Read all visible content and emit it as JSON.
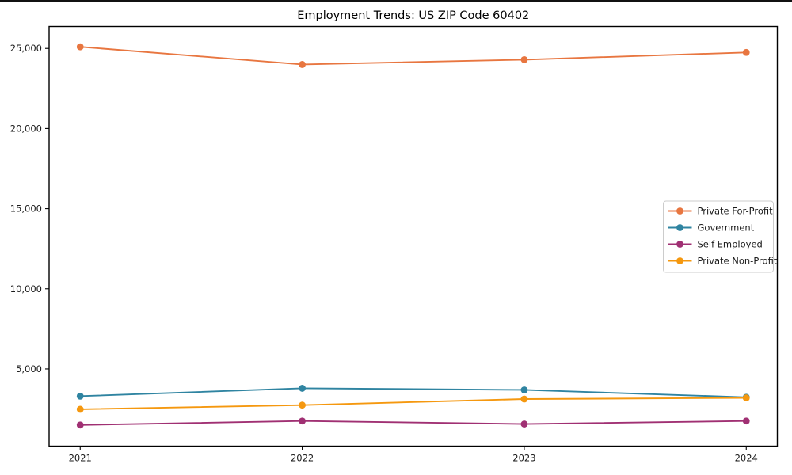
{
  "chart_data": {
    "type": "line",
    "title": "Employment Trends: US ZIP Code 60402",
    "xlabel": "",
    "ylabel": "",
    "x": [
      2021,
      2022,
      2023,
      2024
    ],
    "x_tick_labels": [
      "2021",
      "2022",
      "2023",
      "2024"
    ],
    "series": [
      {
        "name": "Private For-Profit",
        "color": "#e87640",
        "values": [
          25100,
          24000,
          24300,
          24750
        ]
      },
      {
        "name": "Government",
        "color": "#2f84a1",
        "values": [
          3300,
          3790,
          3690,
          3230
        ]
      },
      {
        "name": "Self-Employed",
        "color": "#a03073",
        "values": [
          1500,
          1750,
          1560,
          1750
        ]
      },
      {
        "name": "Private Non-Profit",
        "color": "#f5980f",
        "values": [
          2480,
          2740,
          3120,
          3190
        ]
      }
    ],
    "xlim": [
      2020.86,
      2024.14
    ],
    "ylim": [
      180,
      26370
    ],
    "yticks": [
      5000,
      10000,
      15000,
      20000,
      25000
    ],
    "ytick_labels": [
      "5,000",
      "10,000",
      "15,000",
      "20,000",
      "25,000"
    ],
    "grid": false,
    "marker": "circle",
    "legend": {
      "position": "center right",
      "items": [
        "Private For-Profit",
        "Government",
        "Self-Employed",
        "Private Non-Profit"
      ]
    },
    "colors": {
      "background": "#ffffff",
      "frame": "#000000",
      "tick_label": "#1a1a1a",
      "legend_border": "#cccccc",
      "legend_background": "#ffffff"
    }
  }
}
